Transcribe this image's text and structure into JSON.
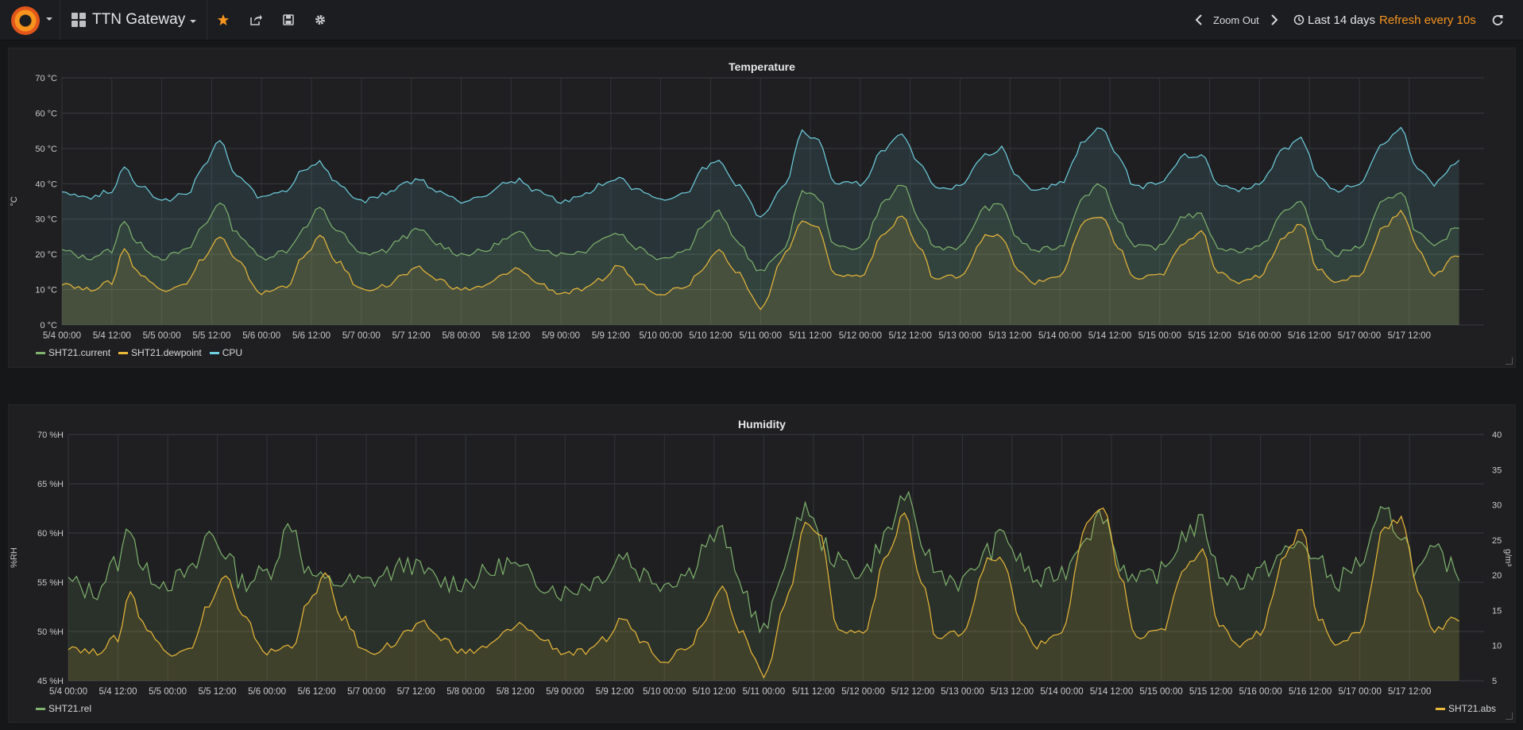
{
  "topbar": {
    "dashboard_title": "TTN Gateway",
    "zoom_out_label": "Zoom Out",
    "time_range": "Last 14 days",
    "refresh_label": "Refresh every 10s",
    "icons": [
      "grafana-logo-icon",
      "dashboard-grid-icon",
      "star-icon",
      "share-icon",
      "save-icon",
      "settings-gear-icon",
      "chevron-left-icon",
      "chevron-right-icon",
      "clock-icon",
      "refresh-icon"
    ],
    "accent_color": "#f7941e"
  },
  "chart_data": [
    {
      "type": "area",
      "title": "Temperature",
      "ylabel": "°C",
      "ylim": [
        0,
        70
      ],
      "y_ticks": [
        "70 °C",
        "60 °C",
        "50 °C",
        "40 °C",
        "30 °C",
        "20 °C",
        "10 °C",
        "0 °C"
      ],
      "x_ticks": [
        "5/4 00:00",
        "5/4 12:00",
        "5/5 00:00",
        "5/5 12:00",
        "5/6 00:00",
        "5/6 12:00",
        "5/7 00:00",
        "5/7 12:00",
        "5/8 00:00",
        "5/8 12:00",
        "5/9 00:00",
        "5/9 12:00",
        "5/10 00:00",
        "5/10 12:00",
        "5/11 00:00",
        "5/11 12:00",
        "5/12 00:00",
        "5/12 12:00",
        "5/13 00:00",
        "5/13 12:00",
        "5/14 00:00",
        "5/14 12:00",
        "5/15 00:00",
        "5/15 12:00",
        "5/16 00:00",
        "5/16 12:00",
        "5/17 00:00",
        "5/17 12:00"
      ],
      "grid": true,
      "legend": "bottom-left",
      "x_hours": [
        0,
        6,
        12,
        15,
        18,
        24,
        30,
        34,
        38,
        42,
        48,
        54,
        58,
        62,
        66,
        72,
        78,
        82,
        86,
        90,
        96,
        102,
        106,
        110,
        114,
        120,
        126,
        130,
        134,
        138,
        144,
        150,
        154,
        158,
        162,
        168,
        174,
        178,
        182,
        186,
        192,
        198,
        202,
        206,
        210,
        216,
        222,
        226,
        230,
        234,
        240,
        246,
        250,
        254,
        258,
        264,
        270,
        274,
        278,
        282,
        288,
        294,
        298,
        302,
        306,
        312,
        318,
        322,
        326,
        330,
        336
      ],
      "series": [
        {
          "name": "SHT21.current",
          "color": "#7eb26d",
          "values": [
            21,
            19,
            21,
            30,
            23,
            19,
            21,
            28,
            35,
            26,
            19,
            21,
            27,
            33,
            27,
            20,
            21,
            25,
            27,
            23,
            20,
            21,
            24,
            26,
            22,
            20,
            21,
            25,
            26,
            22,
            19,
            21,
            28,
            32,
            24,
            15,
            22,
            38,
            36,
            22,
            22,
            35,
            40,
            30,
            22,
            22,
            33,
            34,
            24,
            21,
            22,
            37,
            40,
            30,
            22,
            22,
            31,
            31,
            22,
            21,
            22,
            32,
            35,
            24,
            20,
            22,
            35,
            38,
            26,
            22,
            28
          ]
        },
        {
          "name": "SHT21.dewpoint",
          "color": "#eab839",
          "values": [
            12,
            10,
            12,
            22,
            15,
            10,
            12,
            19,
            25,
            18,
            9,
            11,
            19,
            25,
            18,
            10,
            11,
            14,
            16,
            13,
            10,
            11,
            14,
            16,
            12,
            9,
            10,
            13,
            17,
            12,
            9,
            11,
            16,
            22,
            15,
            5,
            20,
            30,
            27,
            14,
            14,
            26,
            31,
            22,
            13,
            14,
            25,
            25,
            15,
            12,
            14,
            29,
            31,
            22,
            13,
            14,
            23,
            27,
            15,
            12,
            14,
            25,
            29,
            16,
            12,
            14,
            28,
            32,
            22,
            14,
            20
          ]
        },
        {
          "name": "CPU",
          "color": "#6ed0e0",
          "values": [
            38,
            36,
            38,
            45,
            40,
            35,
            37,
            45,
            52,
            42,
            36,
            38,
            44,
            46,
            40,
            35,
            37,
            40,
            41,
            38,
            35,
            37,
            40,
            41,
            38,
            35,
            37,
            40,
            42,
            38,
            35,
            37,
            44,
            47,
            40,
            31,
            40,
            55,
            52,
            40,
            40,
            50,
            54,
            46,
            39,
            39,
            48,
            50,
            42,
            38,
            40,
            52,
            56,
            48,
            39,
            40,
            48,
            48,
            40,
            38,
            40,
            50,
            53,
            42,
            38,
            40,
            52,
            56,
            44,
            40,
            46
          ]
        }
      ]
    },
    {
      "type": "line",
      "title": "Humidity",
      "ylabel": "%RH",
      "ylabel_right": "g/m³",
      "ylim": [
        45,
        70
      ],
      "ylim_right": [
        5,
        40
      ],
      "y_ticks": [
        "70 %H",
        "65 %H",
        "60 %H",
        "55 %H",
        "50 %H",
        "45 %H"
      ],
      "y_ticks_right": [
        "40",
        "35",
        "30",
        "25",
        "20",
        "15",
        "10",
        "5"
      ],
      "x_ticks": [
        "5/4 00:00",
        "5/4 12:00",
        "5/5 00:00",
        "5/5 12:00",
        "5/6 00:00",
        "5/6 12:00",
        "5/7 00:00",
        "5/7 12:00",
        "5/8 00:00",
        "5/8 12:00",
        "5/9 00:00",
        "5/9 12:00",
        "5/10 00:00",
        "5/10 12:00",
        "5/11 00:00",
        "5/11 12:00",
        "5/12 00:00",
        "5/12 12:00",
        "5/13 00:00",
        "5/13 12:00",
        "5/14 00:00",
        "5/14 12:00",
        "5/15 00:00",
        "5/15 12:00",
        "5/16 00:00",
        "5/16 12:00",
        "5/17 00:00",
        "5/17 12:00"
      ],
      "grid": true,
      "legend": "bottom",
      "x_hours": [
        0,
        6,
        12,
        15,
        18,
        24,
        30,
        34,
        38,
        42,
        48,
        54,
        58,
        62,
        66,
        72,
        78,
        82,
        86,
        90,
        96,
        102,
        106,
        110,
        114,
        120,
        126,
        130,
        134,
        138,
        144,
        150,
        154,
        158,
        162,
        168,
        174,
        178,
        182,
        186,
        192,
        198,
        202,
        206,
        210,
        216,
        222,
        226,
        230,
        234,
        240,
        246,
        250,
        254,
        258,
        264,
        270,
        274,
        278,
        282,
        288,
        294,
        298,
        302,
        306,
        312,
        318,
        322,
        326,
        330,
        336
      ],
      "series": [
        {
          "name": "SHT21.rel",
          "color": "#7eb26d",
          "axis": "left",
          "values": [
            55,
            54,
            57,
            61,
            56,
            55,
            56,
            60,
            58,
            55,
            56,
            61,
            56,
            55,
            55,
            55,
            56,
            57,
            56,
            55,
            55,
            56,
            57,
            56,
            55,
            54,
            55,
            56,
            58,
            56,
            55,
            56,
            59,
            60,
            55,
            50,
            58,
            63,
            59,
            57,
            56,
            60,
            64,
            59,
            56,
            55,
            58,
            60,
            57,
            55,
            56,
            60,
            62,
            57,
            55,
            56,
            60,
            61,
            56,
            55,
            56,
            58,
            59,
            57,
            55,
            57,
            62,
            60,
            56,
            58,
            56
          ]
        },
        {
          "name": "SHT21.abs",
          "color": "#eab839",
          "axis": "right",
          "values": [
            10,
            9,
            11,
            18,
            13,
            9,
            10,
            16,
            20,
            14,
            9,
            10,
            16,
            20,
            14,
            9,
            10,
            12,
            13,
            11,
            9,
            10,
            12,
            13,
            11,
            9,
            9,
            11,
            14,
            11,
            8,
            10,
            14,
            19,
            12,
            6,
            17,
            28,
            25,
            12,
            12,
            23,
            29,
            19,
            11,
            12,
            22,
            22,
            13,
            10,
            12,
            27,
            30,
            20,
            11,
            12,
            21,
            24,
            13,
            10,
            12,
            23,
            27,
            14,
            10,
            12,
            27,
            28,
            18,
            12,
            14
          ]
        }
      ]
    }
  ]
}
